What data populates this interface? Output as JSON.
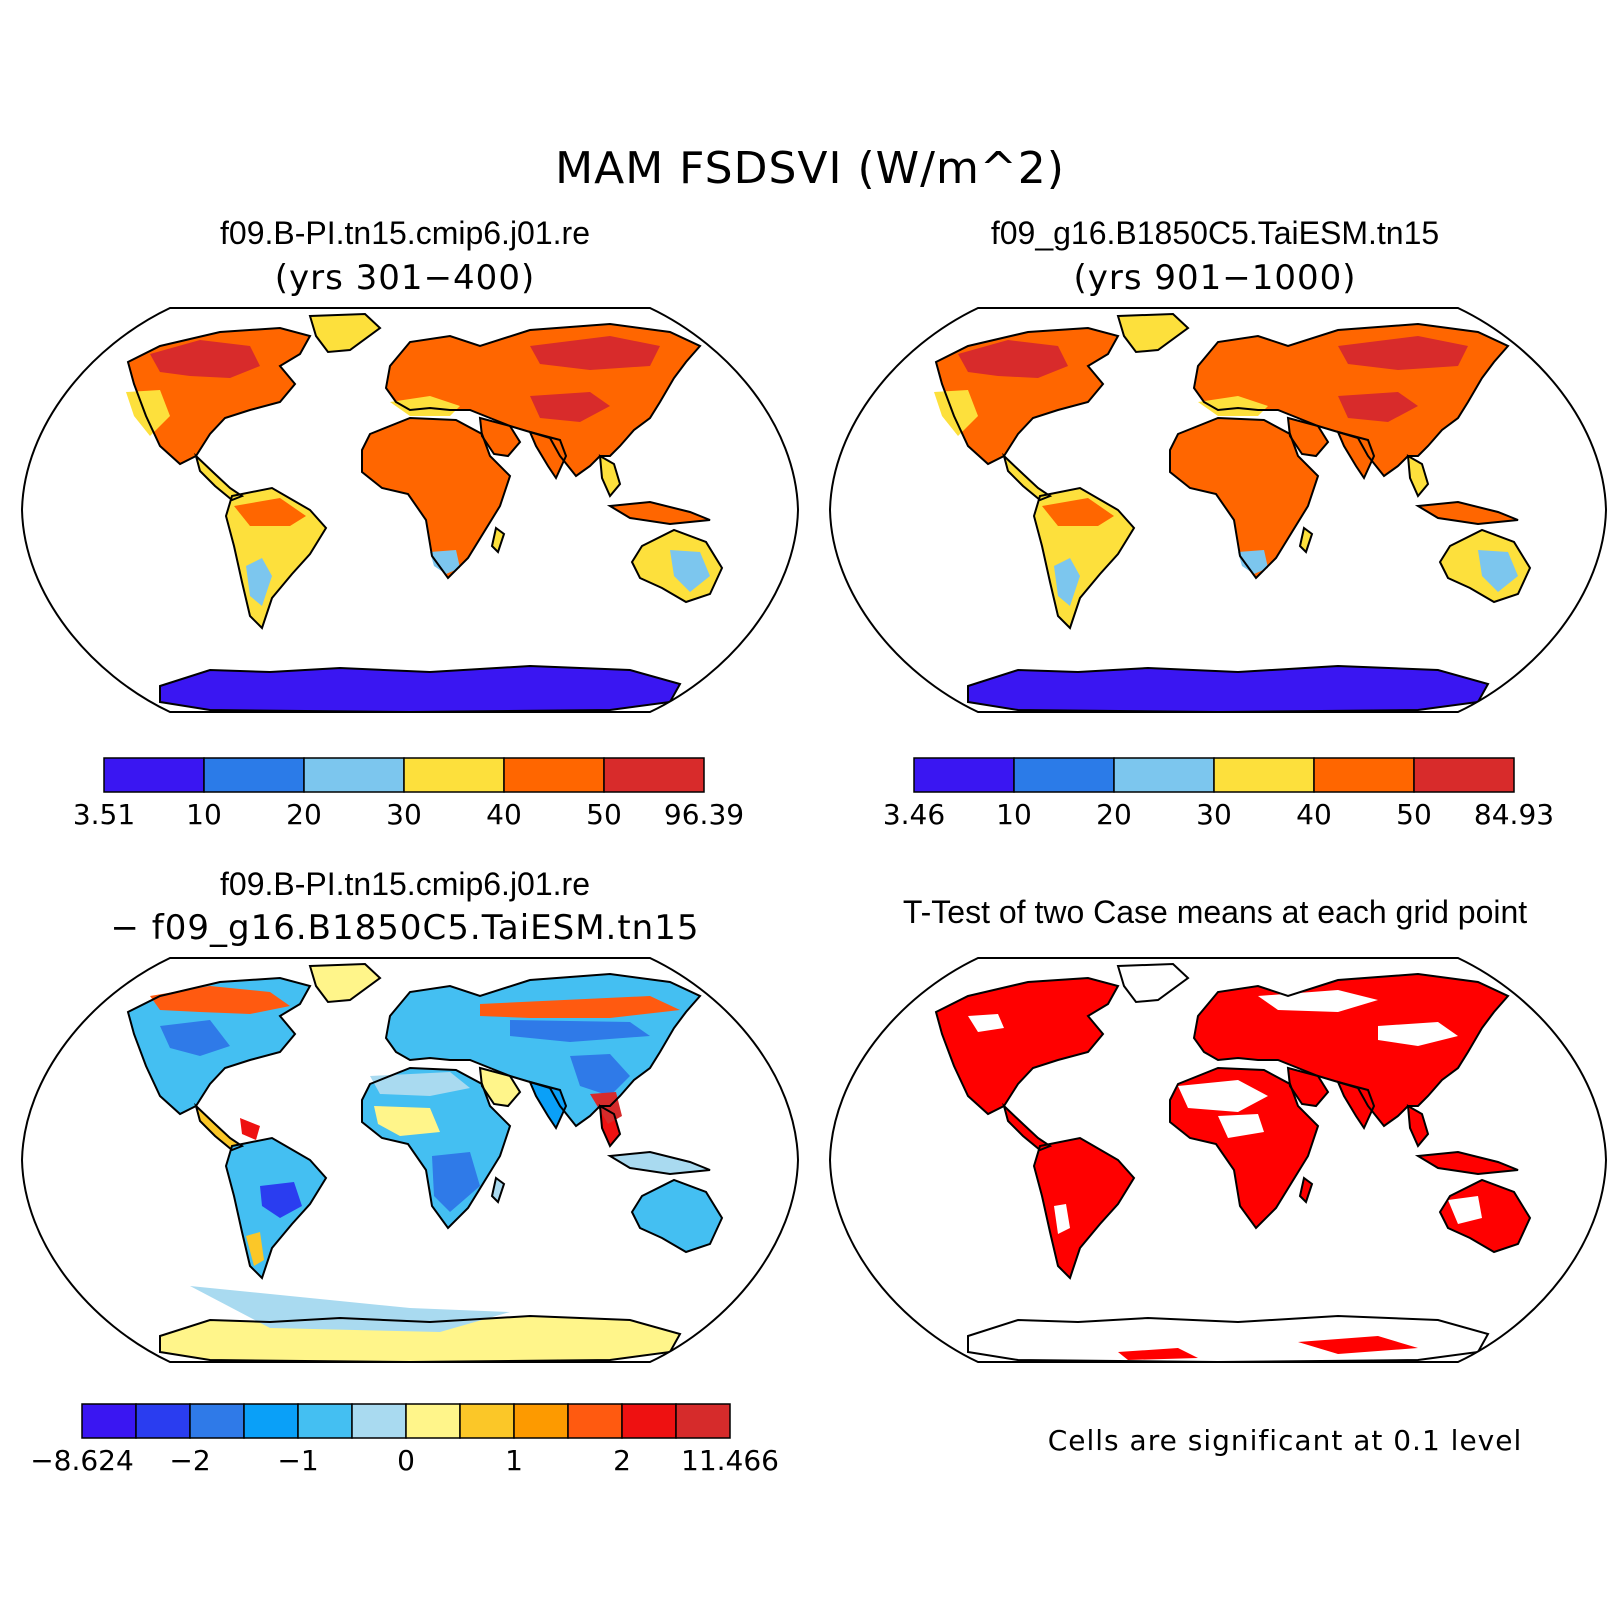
{
  "title": "MAM FSDSVI (W/m^2)",
  "panels": {
    "case1": {
      "title": "f09.B-PI.tn15.cmip6.j01.re",
      "subtitle": "(yrs 301−400)"
    },
    "case2": {
      "title": "f09_g16.B1850C5.TaiESM.tn15",
      "subtitle": "(yrs 901−1000)"
    },
    "diff": {
      "title": "f09.B-PI.tn15.cmip6.j01.re",
      "subtitle": "− f09_g16.B1850C5.TaiESM.tn15"
    },
    "ttest": {
      "title": "T-Test of two Case means at each grid point",
      "note": "Cells are significant at 0.1 level"
    }
  },
  "colorbars": {
    "case1": {
      "colors": [
        "#3a16f2",
        "#2b7be8",
        "#7cc6ee",
        "#fde03c",
        "#ff6600",
        "#d82b2b"
      ],
      "labels": [
        "3.51",
        "10",
        "20",
        "30",
        "40",
        "50",
        "96.39"
      ]
    },
    "case2": {
      "colors": [
        "#3a16f2",
        "#2b7be8",
        "#7cc6ee",
        "#fde03c",
        "#ff6600",
        "#d82b2b"
      ],
      "labels": [
        "3.46",
        "10",
        "20",
        "30",
        "40",
        "50",
        "84.93"
      ]
    },
    "diff": {
      "colors": [
        "#3a16f2",
        "#2a3df0",
        "#2f7ae8",
        "#0aa0f8",
        "#44bff2",
        "#a9daf0",
        "#fff58a",
        "#fbc728",
        "#fd9a00",
        "#ff5a10",
        "#ee1111",
        "#d62b2b"
      ],
      "labels": [
        "−8.624",
        "−2",
        "−1",
        "0",
        "1",
        "2",
        "11.466"
      ]
    }
  },
  "map_colors": {
    "ocean": "#ffffff",
    "coast": "#000000",
    "significant": "#ff0000",
    "antarctica_case": "#3a16f2",
    "antarctica_diff": "#fff58a"
  }
}
